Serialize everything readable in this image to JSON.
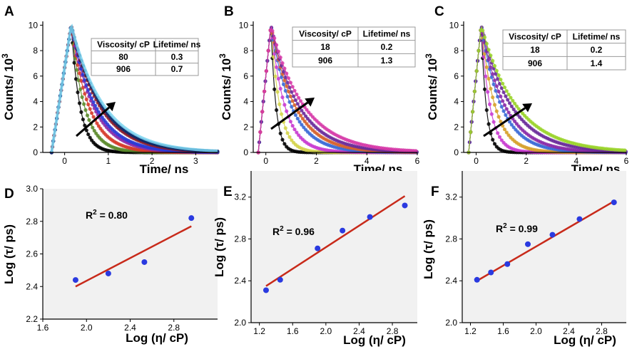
{
  "chart_data": [
    {
      "panel": "A",
      "type": "scatter",
      "title": "",
      "xlabel": "Time/ ns",
      "ylabel": "Counts/ 10^3",
      "xlim": [
        -0.5,
        3.5
      ],
      "ylim": [
        0,
        10.3
      ],
      "xticks": [
        0,
        1,
        2,
        3
      ],
      "yticks": [
        0,
        2,
        4,
        6,
        8,
        10
      ],
      "decay": {
        "peak": 10,
        "peak_time": 0.15,
        "rise_start": -0.3,
        "dt": 0.02
      },
      "series": [
        {
          "name": "decay-1",
          "color": "#000000",
          "tau": 0.2,
          "markers": true
        },
        {
          "name": "decay-2",
          "color": "#5a8a2a",
          "tau": 0.3,
          "markers": true
        },
        {
          "name": "decay-3",
          "color": "#d63a2a",
          "tau": 0.4,
          "markers": true
        },
        {
          "name": "decay-4",
          "color": "#8a2aa8",
          "tau": 0.5,
          "markers": true
        },
        {
          "name": "decay-5",
          "color": "#2a3ad6",
          "tau": 0.55,
          "markers": true
        },
        {
          "name": "decay-6",
          "color": "#8a1a2a",
          "tau": 0.65,
          "markers": true
        },
        {
          "name": "decay-7",
          "color": "#0a2a6a",
          "tau": 0.7,
          "markers": true
        },
        {
          "name": "decay-8",
          "color": "#7ad4f0",
          "tau": 0.75,
          "markers": false
        }
      ],
      "table": {
        "headers": [
          "Viscosity/ cP",
          "Lifetime/ ns"
        ],
        "rows": [
          [
            "80",
            "0.3"
          ],
          [
            "906",
            "0.7"
          ]
        ]
      }
    },
    {
      "panel": "B",
      "type": "scatter",
      "title": "",
      "xlabel": "Time/ ns",
      "ylabel": "Counts/ 10^3",
      "xlim": [
        -0.5,
        6
      ],
      "ylim": [
        0,
        10.3
      ],
      "xticks": [
        0,
        2,
        4,
        6
      ],
      "yticks": [
        0,
        2,
        4,
        6,
        8,
        10
      ],
      "decay": {
        "peak": 10,
        "peak_time": 0.2,
        "rise_start": -0.3,
        "dt": 0.04
      },
      "series": [
        {
          "name": "decay-1",
          "color": "#000000",
          "tau": 0.2,
          "markers": true
        },
        {
          "name": "decay-2",
          "color": "#d4d44a",
          "tau": 0.35,
          "markers": true
        },
        {
          "name": "decay-3",
          "color": "#c83ad0",
          "tau": 0.55,
          "markers": true
        },
        {
          "name": "decay-4",
          "color": "#3a6ad6",
          "tau": 0.8,
          "markers": true
        },
        {
          "name": "decay-5",
          "color": "#d6602a",
          "tau": 0.95,
          "markers": true
        },
        {
          "name": "decay-6",
          "color": "#6a2a9a",
          "tau": 1.1,
          "markers": true
        },
        {
          "name": "decay-7",
          "color": "#d63aa8",
          "tau": 1.3,
          "markers": true
        }
      ],
      "table": {
        "headers": [
          "Viscosity/ cP",
          "Lifetime/ ns"
        ],
        "rows": [
          [
            "18",
            "0.2"
          ],
          [
            "906",
            "1.3"
          ]
        ]
      }
    },
    {
      "panel": "C",
      "type": "scatter",
      "title": "",
      "xlabel": "Time/ ns",
      "ylabel": "Counts/ 10^3",
      "xlim": [
        -0.5,
        6
      ],
      "ylim": [
        0,
        10.3
      ],
      "xticks": [
        0,
        2,
        4,
        6
      ],
      "yticks": [
        0,
        2,
        4,
        6,
        8,
        10
      ],
      "decay": {
        "peak": 10,
        "peak_time": 0.2,
        "rise_start": -0.3,
        "dt": 0.04
      },
      "series": [
        {
          "name": "decay-1",
          "color": "#000000",
          "tau": 0.2,
          "markers": true
        },
        {
          "name": "decay-2",
          "color": "#c83ad0",
          "tau": 0.35,
          "markers": true
        },
        {
          "name": "decay-3",
          "color": "#d6a02a",
          "tau": 0.55,
          "markers": true
        },
        {
          "name": "decay-4",
          "color": "#3a6ad6",
          "tau": 0.8,
          "markers": true
        },
        {
          "name": "decay-5",
          "color": "#8a2aa8",
          "tau": 0.95,
          "markers": true
        },
        {
          "name": "decay-6",
          "color": "#6a2a9a",
          "tau": 1.2,
          "markers": true
        },
        {
          "name": "decay-7",
          "color": "#9ad42a",
          "tau": 1.4,
          "markers": true
        }
      ],
      "table": {
        "headers": [
          "Viscosity/ cP",
          "Lifetime/ ns"
        ],
        "rows": [
          [
            "18",
            "0.2"
          ],
          [
            "906",
            "1.4"
          ]
        ]
      }
    },
    {
      "panel": "D",
      "type": "scatter",
      "title": "",
      "xlabel": "Log (η/ cP)",
      "ylabel": "Log (τ/ ps)",
      "xlim": [
        1.6,
        3.2
      ],
      "ylim": [
        2.2,
        3.0
      ],
      "xticks": [
        1.6,
        2.0,
        2.4,
        2.8
      ],
      "yticks": [
        2.2,
        2.4,
        2.6,
        2.8,
        3.0
      ],
      "x": [
        1.9,
        2.2,
        2.53,
        2.96
      ],
      "y": [
        2.44,
        2.48,
        2.55,
        2.82
      ],
      "fit": {
        "x": [
          1.9,
          2.96
        ],
        "y": [
          2.4,
          2.77
        ]
      },
      "annotation": "R² = 0.80",
      "point_color": "#2a3ae0",
      "fit_color": "#c82a1a"
    },
    {
      "panel": "E",
      "type": "scatter",
      "title": "",
      "xlabel": "Log (η/ cP)",
      "ylabel": "Log (τ/ ps)",
      "xlim": [
        1.1,
        3.1
      ],
      "ylim": [
        2.0,
        3.45
      ],
      "xticks": [
        1.2,
        1.6,
        2.0,
        2.4,
        2.8
      ],
      "yticks": [
        2.0,
        2.4,
        2.8,
        3.2
      ],
      "x": [
        1.28,
        1.45,
        1.9,
        2.2,
        2.53,
        2.95
      ],
      "y": [
        2.31,
        2.41,
        2.71,
        2.88,
        3.01,
        3.12
      ],
      "fit": {
        "x": [
          1.28,
          2.95
        ],
        "y": [
          2.35,
          3.21
        ]
      },
      "annotation": "R² = 0.96",
      "point_color": "#2a3ae0",
      "fit_color": "#c82a1a"
    },
    {
      "panel": "F",
      "type": "scatter",
      "title": "",
      "xlabel": "Log (η/ cP)",
      "ylabel": "Log (τ/ ps)",
      "xlim": [
        1.1,
        3.1
      ],
      "ylim": [
        2.0,
        3.45
      ],
      "xticks": [
        1.2,
        1.6,
        2.0,
        2.4,
        2.8
      ],
      "yticks": [
        2.0,
        2.4,
        2.8,
        3.2
      ],
      "x": [
        1.28,
        1.45,
        1.65,
        1.9,
        2.2,
        2.53,
        2.95
      ],
      "y": [
        2.41,
        2.48,
        2.56,
        2.75,
        2.84,
        2.99,
        3.15
      ],
      "fit": {
        "x": [
          1.28,
          2.95
        ],
        "y": [
          2.4,
          3.16
        ]
      },
      "annotation": "R² = 0.99",
      "point_color": "#2a3ae0",
      "fit_color": "#c82a1a"
    }
  ]
}
